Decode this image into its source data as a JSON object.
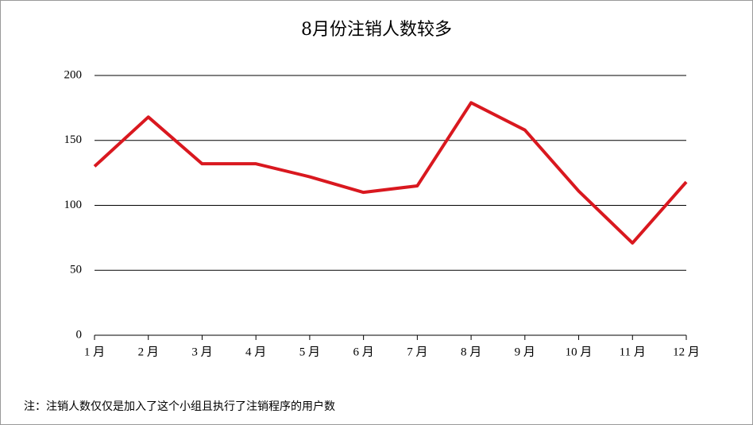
{
  "chart_data": {
    "type": "line",
    "title": "8月份注销人数较多",
    "categories": [
      "1 月",
      "2 月",
      "3 月",
      "4 月",
      "5 月",
      "6 月",
      "7 月",
      "8 月",
      "9 月",
      "10 月",
      "11 月",
      "12 月"
    ],
    "series": [
      {
        "name": "注销人数",
        "color": "#d9181f",
        "values": [
          130,
          168,
          132,
          132,
          122,
          110,
          115,
          179,
          158,
          111,
          71,
          118
        ]
      }
    ],
    "ylim": [
      0,
      200
    ],
    "yticks": [
      0,
      50,
      100,
      150,
      200
    ],
    "grid": true,
    "note": "注：注销人数仅仅是加入了这个小组且执行了注销程序的用户数"
  }
}
